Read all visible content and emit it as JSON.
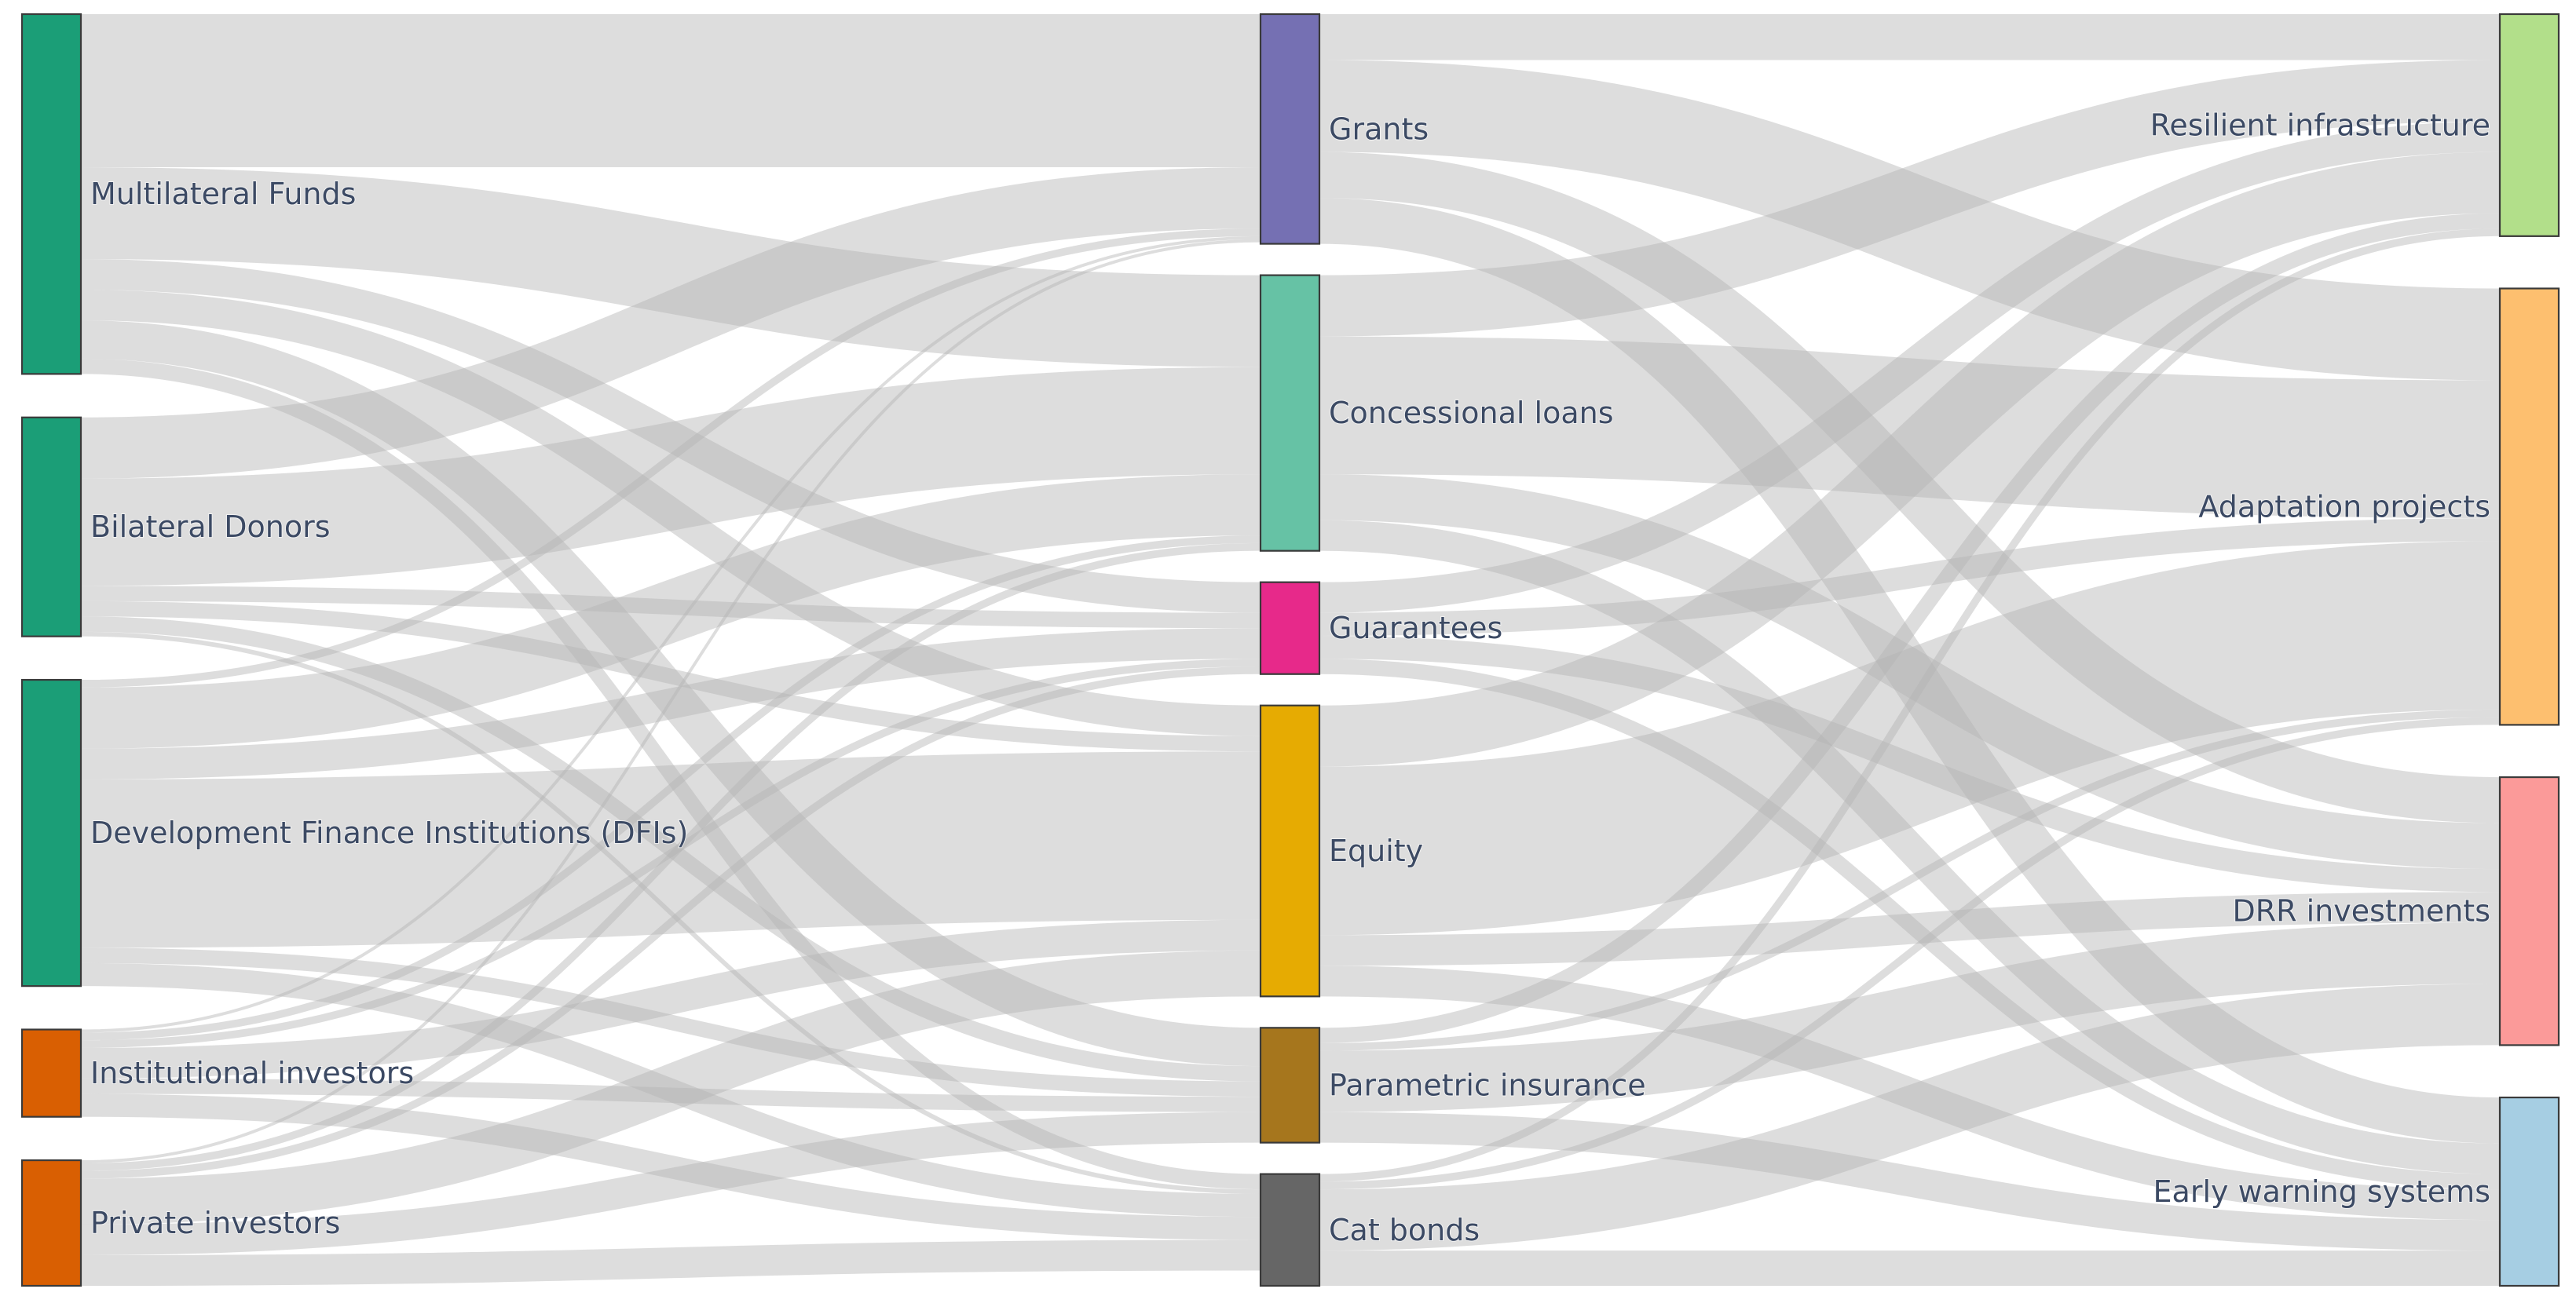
{
  "diagram": {
    "type": "sankey",
    "colors": {
      "link": "#b4b4b4",
      "node_border": "#3a3a3a",
      "label_text": "#3c4a64"
    },
    "nodes": [
      {
        "id": "mf",
        "label": "Multilateral Funds",
        "column": 0,
        "color": "#1b9e77"
      },
      {
        "id": "bd",
        "label": "Bilateral Donors",
        "column": 0,
        "color": "#1b9e77"
      },
      {
        "id": "dfi",
        "label": "Development Finance Institutions (DFIs)",
        "column": 0,
        "color": "#1b9e77"
      },
      {
        "id": "ii",
        "label": "Institutional investors",
        "column": 0,
        "color": "#d95f02"
      },
      {
        "id": "pi",
        "label": "Private investors",
        "column": 0,
        "color": "#d95f02"
      },
      {
        "id": "gr",
        "label": "Grants",
        "column": 1,
        "color": "#7570b3"
      },
      {
        "id": "cl",
        "label": "Concessional loans",
        "column": 1,
        "color": "#66c2a5"
      },
      {
        "id": "gu",
        "label": "Guarantees",
        "column": 1,
        "color": "#e7298a"
      },
      {
        "id": "eq",
        "label": "Equity",
        "column": 1,
        "color": "#e6ab02"
      },
      {
        "id": "pins",
        "label": "Parametric insurance",
        "column": 1,
        "color": "#a6761d"
      },
      {
        "id": "cb",
        "label": "Cat bonds",
        "column": 1,
        "color": "#666666"
      },
      {
        "id": "ri",
        "label": "Resilient infrastructure",
        "column": 2,
        "color": "#b2df8a"
      },
      {
        "id": "ap",
        "label": "Adaptation projects",
        "column": 2,
        "color": "#fdbf6f"
      },
      {
        "id": "drr",
        "label": "DRR investments",
        "column": 2,
        "color": "#fb9a99"
      },
      {
        "id": "ews",
        "label": "Early warning systems",
        "column": 2,
        "color": "#a6cee3"
      }
    ],
    "links": [
      {
        "source": "mf",
        "target": "gr",
        "value": 10
      },
      {
        "source": "mf",
        "target": "cl",
        "value": 6
      },
      {
        "source": "mf",
        "target": "gu",
        "value": 2
      },
      {
        "source": "mf",
        "target": "eq",
        "value": 2
      },
      {
        "source": "mf",
        "target": "pins",
        "value": 2.5
      },
      {
        "source": "mf",
        "target": "cb",
        "value": 1
      },
      {
        "source": "bd",
        "target": "gr",
        "value": 4
      },
      {
        "source": "bd",
        "target": "cl",
        "value": 7
      },
      {
        "source": "bd",
        "target": "gu",
        "value": 1
      },
      {
        "source": "bd",
        "target": "eq",
        "value": 1
      },
      {
        "source": "bd",
        "target": "pins",
        "value": 1
      },
      {
        "source": "bd",
        "target": "cb",
        "value": 0.3
      },
      {
        "source": "dfi",
        "target": "gr",
        "value": 0.5
      },
      {
        "source": "dfi",
        "target": "cl",
        "value": 4
      },
      {
        "source": "dfi",
        "target": "gu",
        "value": 2
      },
      {
        "source": "dfi",
        "target": "eq",
        "value": 11
      },
      {
        "source": "dfi",
        "target": "pins",
        "value": 1
      },
      {
        "source": "dfi",
        "target": "cb",
        "value": 1.5
      },
      {
        "source": "ii",
        "target": "gr",
        "value": 0.2
      },
      {
        "source": "ii",
        "target": "cl",
        "value": 0.5
      },
      {
        "source": "ii",
        "target": "gu",
        "value": 0.5
      },
      {
        "source": "ii",
        "target": "eq",
        "value": 2
      },
      {
        "source": "ii",
        "target": "pins",
        "value": 1
      },
      {
        "source": "ii",
        "target": "cb",
        "value": 1.5
      },
      {
        "source": "pi",
        "target": "gr",
        "value": 0.2
      },
      {
        "source": "pi",
        "target": "cl",
        "value": 0.5
      },
      {
        "source": "pi",
        "target": "gu",
        "value": 0.5
      },
      {
        "source": "pi",
        "target": "eq",
        "value": 3
      },
      {
        "source": "pi",
        "target": "pins",
        "value": 2
      },
      {
        "source": "pi",
        "target": "cb",
        "value": 2
      },
      {
        "source": "gr",
        "target": "ri",
        "value": 3
      },
      {
        "source": "gr",
        "target": "ap",
        "value": 6
      },
      {
        "source": "gr",
        "target": "drr",
        "value": 3
      },
      {
        "source": "gr",
        "target": "ews",
        "value": 3
      },
      {
        "source": "cl",
        "target": "ri",
        "value": 4
      },
      {
        "source": "cl",
        "target": "ap",
        "value": 9
      },
      {
        "source": "cl",
        "target": "drr",
        "value": 3
      },
      {
        "source": "cl",
        "target": "ews",
        "value": 2
      },
      {
        "source": "gu",
        "target": "ri",
        "value": 2
      },
      {
        "source": "gu",
        "target": "ap",
        "value": 1.5
      },
      {
        "source": "gu",
        "target": "drr",
        "value": 1.5
      },
      {
        "source": "gu",
        "target": "ews",
        "value": 1
      },
      {
        "source": "eq",
        "target": "ri",
        "value": 4
      },
      {
        "source": "eq",
        "target": "ap",
        "value": 11
      },
      {
        "source": "eq",
        "target": "drr",
        "value": 2
      },
      {
        "source": "eq",
        "target": "ews",
        "value": 2
      },
      {
        "source": "pins",
        "target": "ri",
        "value": 1
      },
      {
        "source": "pins",
        "target": "ap",
        "value": 0.5
      },
      {
        "source": "pins",
        "target": "drr",
        "value": 4
      },
      {
        "source": "pins",
        "target": "ews",
        "value": 2
      },
      {
        "source": "cb",
        "target": "ri",
        "value": 0.5
      },
      {
        "source": "cb",
        "target": "ap",
        "value": 0.5
      },
      {
        "source": "cb",
        "target": "drr",
        "value": 4
      },
      {
        "source": "cb",
        "target": "ews",
        "value": 2.3
      }
    ]
  }
}
